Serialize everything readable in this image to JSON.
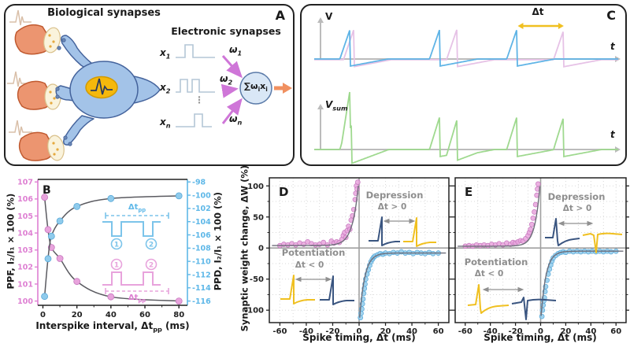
{
  "colors": {
    "ppf_pink": "#E8A3DC",
    "ppf_edge": "#C678BE",
    "ppd_blue": "#8FCBEC",
    "ppd_edge": "#58A8D8",
    "curve_gray": "#5A5A60",
    "fit_gray": "#6E6E7A",
    "navy": "#3A5580",
    "gold": "#F0C020",
    "green": "#9FD98F",
    "trace_blue": "#5FB4E6",
    "trace_pink": "#E6C2E6",
    "magenta": "#CF76D8",
    "orange": "#F09060",
    "annotation_gray": "#8E8E8E",
    "axis_gray": "#BBBBBB",
    "pink_axis": "#DE7FD2",
    "blue_axis": "#5FB8E8"
  },
  "panel_a": {
    "label": "A",
    "bio_title": "Biological synapses",
    "elec_title": "Electronic synapses",
    "inputs": [
      {
        "base": "x",
        "sub": "1"
      },
      {
        "base": "x",
        "sub": "2"
      },
      {
        "base": "x",
        "sub": "n"
      }
    ],
    "weights": [
      {
        "base": "ω",
        "sub": "1"
      },
      {
        "base": "ω",
        "sub": "2"
      },
      {
        "base": "ω",
        "sub": "n"
      }
    ],
    "dots": "⋮",
    "sum": {
      "pre": "∑ω",
      "sub1": "i",
      "mid": "x",
      "sub2": "i"
    }
  },
  "panel_c": {
    "label": "C",
    "v_label": "V",
    "t_label": "t",
    "vsum_base": "V",
    "vsum_sub": "sum",
    "dt_label": "Δt"
  },
  "chart_data": {
    "b": {
      "type": "line",
      "label": "B",
      "xlabel_parts": {
        "pre": "Interspike interval, Δt",
        "sub": "pp",
        "post": " (ms)"
      },
      "x_ticks": [
        0,
        20,
        40,
        60,
        80
      ],
      "x_minor": [
        10,
        30,
        50,
        70
      ],
      "xlim": [
        -3,
        85
      ],
      "left_axis": {
        "label": "PPF, I₂/I₁ × 100 (%)",
        "ticks": [
          100,
          101,
          102,
          103,
          104,
          105,
          106,
          107
        ],
        "lim": [
          99.75,
          107.15
        ]
      },
      "right_axis": {
        "label": "PPD, I₂/I₁ × 100 (%)",
        "ticks": [
          -98,
          -100,
          -102,
          -104,
          -106,
          -108,
          -110,
          -112,
          -114,
          -116
        ]
      },
      "series": [
        {
          "name": "PPF",
          "axis": "left",
          "x": [
            1,
            3,
            5,
            10,
            20,
            40,
            80
          ],
          "y": [
            106.1,
            104.2,
            103.15,
            102.5,
            101.15,
            100.25,
            100.0
          ]
        },
        {
          "name": "PPD",
          "axis": "right",
          "x": [
            1,
            3,
            5,
            10,
            20,
            40,
            80
          ],
          "y": [
            -115.3,
            -109.6,
            -106.2,
            -103.9,
            -101.7,
            -100.5,
            -100.1
          ]
        }
      ],
      "insets": {
        "ppd_seq": [
          "1",
          "2"
        ],
        "ppf_seq": [
          "1",
          "2"
        ],
        "dt_parts": {
          "pre": "Δt",
          "sub": "pp"
        }
      }
    },
    "d": {
      "type": "scatter",
      "label": "D",
      "xlabel": "Spike timing, Δt (ms)",
      "ylabel": "Synaptic weight change, ΔW (%)",
      "x_ticks": [
        -60,
        -40,
        -20,
        0,
        20,
        40,
        60
      ],
      "y_ticks": [
        -100,
        -50,
        0,
        50,
        100
      ],
      "xlim": [
        -68,
        68
      ],
      "ylim": [
        -120,
        113
      ],
      "annotations": {
        "dep": "Depression",
        "dep_dt": "Δt > 0",
        "pot": "Potentiation",
        "pot_dt": "Δt < 0"
      },
      "fits": [
        {
          "side": "neg",
          "offset": 4,
          "amp": 110,
          "tau": 4.5
        },
        {
          "side": "pos",
          "offset": -8,
          "amp": -115,
          "tau": 4
        }
      ],
      "series": [
        {
          "name": "potentiation-points",
          "points": [
            [
              -60,
              4
            ],
            [
              -57,
              6
            ],
            [
              -54,
              5
            ],
            [
              -51,
              7
            ],
            [
              -48,
              5
            ],
            [
              -45,
              8
            ],
            [
              -42,
              6
            ],
            [
              -39,
              10
            ],
            [
              -36,
              7
            ],
            [
              -33,
              5
            ],
            [
              -30,
              6
            ],
            [
              -27,
              9
            ],
            [
              -24,
              5
            ],
            [
              -21,
              11
            ],
            [
              -19,
              8
            ],
            [
              -17,
              10
            ],
            [
              -15,
              9
            ],
            [
              -13,
              14
            ],
            [
              -12,
              20
            ],
            [
              -11,
              25
            ],
            [
              -10,
              17
            ],
            [
              -9,
              28
            ],
            [
              -8,
              35
            ],
            [
              -7,
              30
            ],
            [
              -6,
              45
            ],
            [
              -5,
              52
            ],
            [
              -4,
              62
            ],
            [
              -3,
              78
            ],
            [
              -2.5,
              88
            ],
            [
              -2,
              100
            ],
            [
              -1.5,
              95
            ],
            [
              -1,
              106
            ]
          ]
        },
        {
          "name": "depression-points",
          "points": [
            [
              1,
              -112
            ],
            [
              1.5,
              -105
            ],
            [
              2,
              -98
            ],
            [
              2.5,
              -90
            ],
            [
              3,
              -82
            ],
            [
              3.5,
              -73
            ],
            [
              4,
              -65
            ],
            [
              4.5,
              -58
            ],
            [
              5,
              -50
            ],
            [
              6,
              -42
            ],
            [
              7,
              -35
            ],
            [
              8,
              -28
            ],
            [
              9,
              -22
            ],
            [
              10,
              -18
            ],
            [
              11,
              -15
            ],
            [
              12,
              -13
            ],
            [
              14,
              -11
            ],
            [
              16,
              -9
            ],
            [
              18,
              -10
            ],
            [
              20,
              -8
            ],
            [
              23,
              -9
            ],
            [
              26,
              -7
            ],
            [
              29,
              -8
            ],
            [
              32,
              -6
            ],
            [
              35,
              -8
            ],
            [
              38,
              -7
            ],
            [
              41,
              -9
            ],
            [
              44,
              -7
            ],
            [
              47,
              -8
            ],
            [
              50,
              -9
            ],
            [
              53,
              -7
            ],
            [
              56,
              -9
            ],
            [
              60,
              -8
            ]
          ]
        }
      ]
    },
    "e": {
      "type": "scatter",
      "label": "E",
      "xlabel": "Spike timing, Δt (ms)",
      "x_ticks": [
        -60,
        -40,
        -20,
        0,
        20,
        40,
        60
      ],
      "y_ticks": [
        -100,
        -50,
        0,
        50,
        100
      ],
      "xlim": [
        -68,
        68
      ],
      "ylim": [
        -120,
        113
      ],
      "annotations": {
        "dep": "Depression",
        "dep_dt": "Δt > 0",
        "pot": "Potentiation",
        "pot_dt": "Δt < 0"
      },
      "fits": [
        {
          "side": "neg",
          "offset": 3,
          "amp": 112,
          "tau": 4
        },
        {
          "side": "pos",
          "offset": -5,
          "amp": -115,
          "tau": 4
        }
      ],
      "series": [
        {
          "name": "potentiation-points",
          "points": [
            [
              -60,
              3
            ],
            [
              -57,
              4
            ],
            [
              -54,
              3
            ],
            [
              -51,
              5
            ],
            [
              -48,
              4
            ],
            [
              -45,
              5
            ],
            [
              -42,
              4
            ],
            [
              -39,
              6
            ],
            [
              -36,
              5
            ],
            [
              -33,
              7
            ],
            [
              -30,
              5
            ],
            [
              -27,
              8
            ],
            [
              -24,
              6
            ],
            [
              -22,
              9
            ],
            [
              -20,
              8
            ],
            [
              -18,
              10
            ],
            [
              -16,
              12
            ],
            [
              -14,
              11
            ],
            [
              -12,
              15
            ],
            [
              -10,
              20
            ],
            [
              -9,
              25
            ],
            [
              -8,
              30
            ],
            [
              -7,
              38
            ],
            [
              -6,
              48
            ],
            [
              -5,
              58
            ],
            [
              -4,
              70
            ],
            [
              -3,
              85
            ],
            [
              -2.5,
              95
            ],
            [
              -2,
              103
            ]
          ]
        },
        {
          "name": "depression-points",
          "points": [
            [
              1,
              -110
            ],
            [
              1.5,
              -100
            ],
            [
              2,
              -92
            ],
            [
              2.5,
              -85
            ],
            [
              3,
              -80
            ],
            [
              3.5,
              -70
            ],
            [
              4,
              -62
            ],
            [
              5,
              -52
            ],
            [
              6,
              -42
            ],
            [
              7,
              -34
            ],
            [
              8,
              -27
            ],
            [
              9,
              -21
            ],
            [
              10,
              -16
            ],
            [
              12,
              -12
            ],
            [
              14,
              -9
            ],
            [
              16,
              -7
            ],
            [
              18,
              -6
            ],
            [
              20,
              -7
            ],
            [
              23,
              -5
            ],
            [
              26,
              -6
            ],
            [
              29,
              -5
            ],
            [
              32,
              -6
            ],
            [
              35,
              -5
            ],
            [
              38,
              -6
            ],
            [
              41,
              -5
            ],
            [
              44,
              -6
            ],
            [
              47,
              -5
            ],
            [
              50,
              -6
            ],
            [
              53,
              -5
            ],
            [
              56,
              -6
            ],
            [
              60,
              -5
            ]
          ]
        }
      ]
    },
    "c": {
      "type": "line",
      "pre_t": [
        0.118,
        0.413,
        0.667
      ],
      "post_offset": [
        0.012,
        0.056,
        0.154
      ],
      "sum_offset": [
        0.006,
        0.056,
        0.154
      ]
    }
  }
}
